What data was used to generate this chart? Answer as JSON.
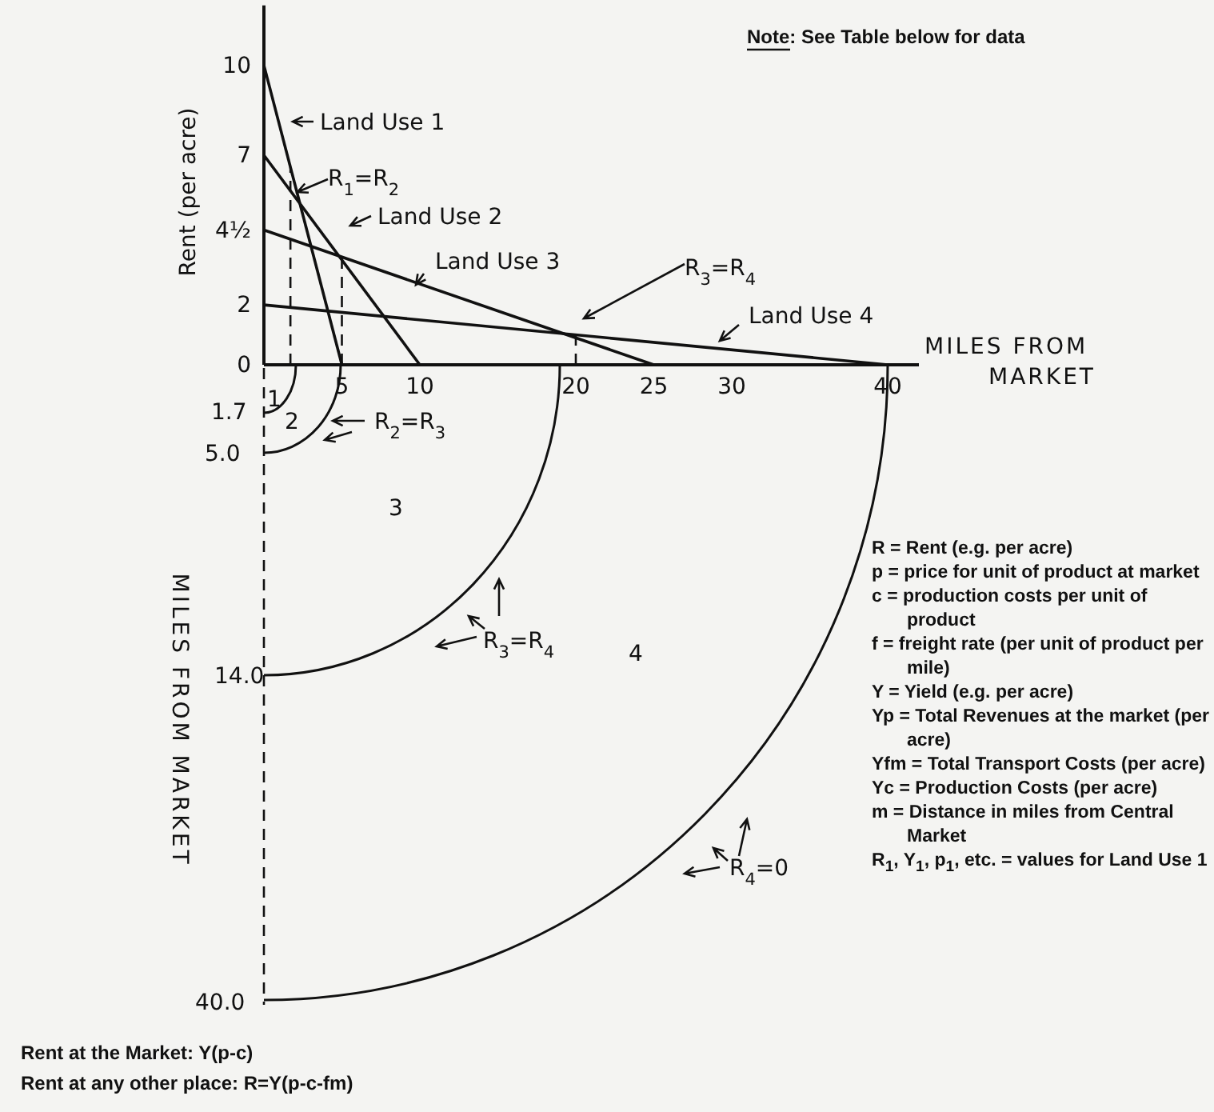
{
  "chart_data": {
    "type": "line",
    "xlabel": "MILES FROM MARKET",
    "ylabel": "Rent (per acre)",
    "xlim": [
      0,
      42
    ],
    "ylim": [
      0,
      12
    ],
    "xticks": [
      5,
      10,
      20,
      25,
      30,
      40
    ],
    "yticks": [
      0,
      2,
      {
        "value": 4.5,
        "label": "4½"
      },
      7,
      10
    ],
    "grid": false,
    "legend": "top left",
    "marker": "none",
    "line_style": "solid",
    "series": [
      {
        "name": "Land Use 1",
        "color": "#111111",
        "x": [
          0,
          5
        ],
        "values": [
          10,
          0
        ]
      },
      {
        "name": "Land Use 2",
        "color": "#111111",
        "x": [
          0,
          10
        ],
        "values": [
          7,
          0
        ]
      },
      {
        "name": "Land Use 3",
        "color": "#111111",
        "x": [
          0,
          25
        ],
        "values": [
          4.5,
          0
        ]
      },
      {
        "name": "Land Use 4",
        "color": "#111111",
        "x": [
          0,
          40
        ],
        "values": [
          2,
          0
        ]
      }
    ],
    "ref_lines": [
      {
        "axis": "x",
        "value": 1.7,
        "line_style": "dashed"
      },
      {
        "axis": "x",
        "value": 5,
        "line_style": "dashed"
      },
      {
        "axis": "x",
        "value": 20,
        "line_style": "dashed"
      }
    ],
    "annotations": [
      "Note: See Table below for data",
      "R$_{1}$=R$_{2}$",
      "R$_{3}$=R$_{4}$",
      "1.7",
      "5.0",
      "14.0",
      "40.0",
      "1",
      "2",
      "3",
      "4",
      "R$_{2}$=R$_{3}$",
      "R$_{3}$=R$_{4}$",
      "R$_{4}$=0",
      "MILES FROM MARKET",
      "R = Rent (e.g. per acre)",
      "p = price for unit of product at market",
      "c = production costs per unit of product",
      "f = freight rate (per unit of product per mile)",
      "Y = Yield (e.g. per acre)",
      "Yp = Total Revenues at the market (per acre)",
      "Yfm = Total Transport Costs (per acre)",
      "Yc = Production Costs (per acre)",
      "m = Distance in miles from Central Market",
      "R$_{1}$, Y$_{1}$, p$_{1}$, etc. = values for Land Use 1",
      "Rent at the Market: Y(p-c)",
      "Rent at any other place: R=Y(p-c-fm)"
    ]
  }
}
